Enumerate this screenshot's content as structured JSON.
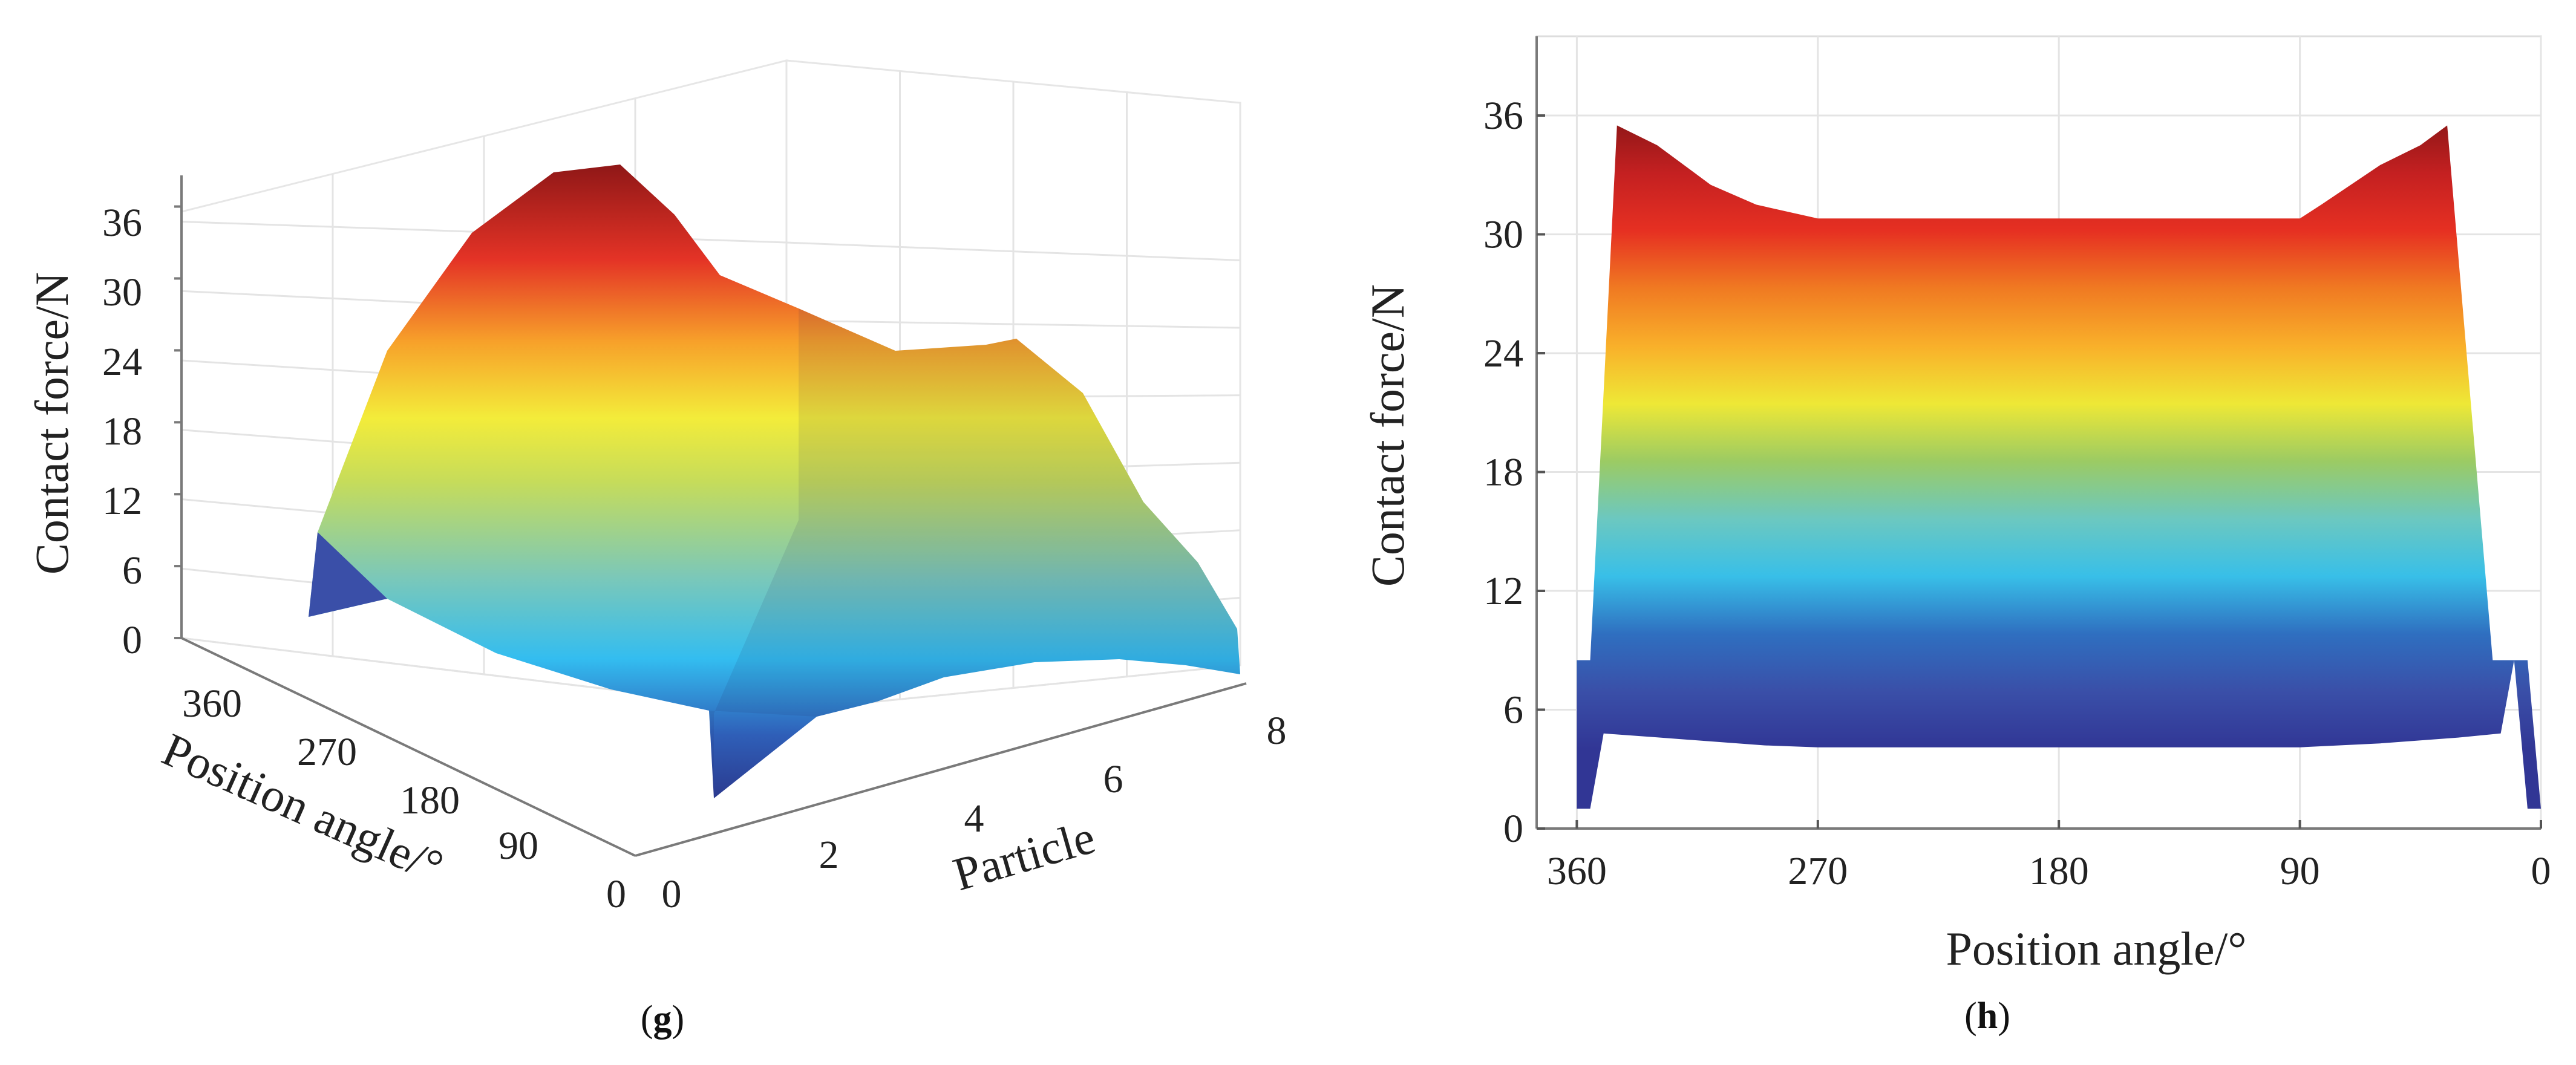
{
  "chart_data": [
    {
      "id": "g",
      "type": "surface",
      "caption_letter": "g",
      "zlabel": "Contact force/N",
      "xlabel": "Position angle/°",
      "ylabel": "Particle",
      "z_ticks": [
        "0",
        "6",
        "12",
        "18",
        "24",
        "30",
        "36"
      ],
      "x_ticks": [
        "360",
        "270",
        "180",
        "90",
        "0"
      ],
      "y_ticks": [
        "0",
        "2",
        "4",
        "6",
        "8"
      ],
      "zlim": [
        0,
        40
      ],
      "colormap": "jet"
    },
    {
      "id": "h",
      "type": "area",
      "caption_letter": "h",
      "ylabel": "Contact force/N",
      "xlabel": "Position angle/°",
      "y_ticks": [
        "0",
        "6",
        "12",
        "18",
        "24",
        "30",
        "36"
      ],
      "x_ticks": [
        "360",
        "270",
        "180",
        "90",
        "0"
      ],
      "xlim": [
        375,
        0
      ],
      "ylim": [
        0,
        40
      ],
      "upper_envelope": {
        "x": [
          360,
          355,
          345,
          330,
          310,
          293,
          270,
          240,
          210,
          180,
          150,
          120,
          90,
          82,
          60,
          45,
          35,
          18,
          10,
          5,
          0
        ],
        "y": [
          8.5,
          8.5,
          35.5,
          34.5,
          32.5,
          31.5,
          30.8,
          30.8,
          30.8,
          30.8,
          30.8,
          30.8,
          30.8,
          31.5,
          33.5,
          34.5,
          35.5,
          8.5,
          8.5,
          1.0,
          1.0
        ]
      },
      "lower_envelope": {
        "x": [
          360,
          355,
          350,
          330,
          290,
          270,
          180,
          90,
          60,
          30,
          15,
          10,
          5
        ],
        "y": [
          1.0,
          1.0,
          4.8,
          4.6,
          4.2,
          4.1,
          4.1,
          4.1,
          4.3,
          4.6,
          4.8,
          8.5,
          8.5
        ]
      },
      "color_gradient": [
        "#313695",
        "#3a4fa8",
        "#2f6fc0",
        "#38bfe8",
        "#6cc8c0",
        "#9ccb63",
        "#eee836",
        "#f9b02a",
        "#f07a22",
        "#e63022",
        "#c42021",
        "#8a1616"
      ]
    }
  ]
}
